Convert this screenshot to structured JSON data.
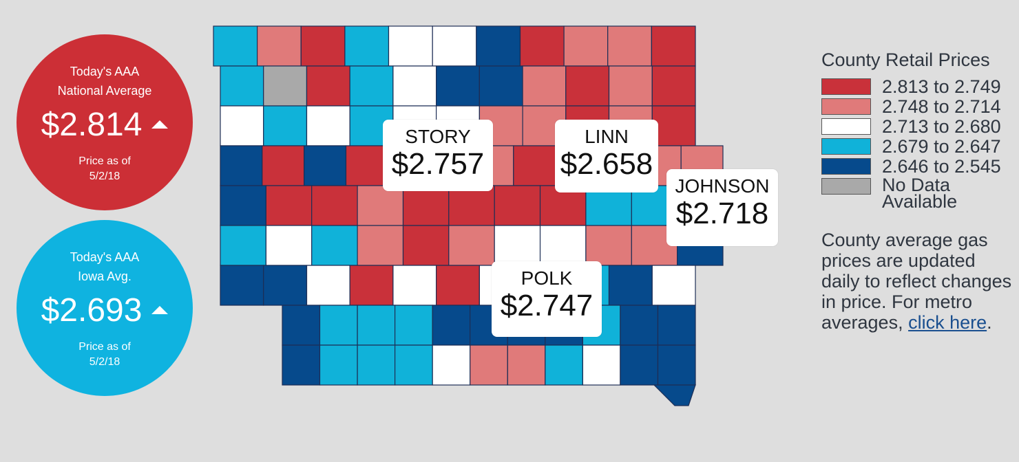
{
  "national": {
    "label_line1": "Today's AAA",
    "label_line2": "National Average",
    "price": "$2.814",
    "asof_line1": "Price as of",
    "asof_line2": "5/2/18",
    "trend": "up-arrow-icon"
  },
  "iowa": {
    "label_line1": "Today's AAA",
    "label_line2": "Iowa Avg.",
    "price": "$2.693",
    "asof_line1": "Price as of",
    "asof_line2": "5/2/18",
    "trend": "up-arrow-icon"
  },
  "callouts": {
    "story": {
      "name": "STORY",
      "price": "$2.757"
    },
    "linn": {
      "name": "LINN",
      "price": "$2.658"
    },
    "johnson": {
      "name": "JOHNSON",
      "price": "$2.718"
    },
    "polk": {
      "name": "POLK",
      "price": "$2.747"
    }
  },
  "legend": {
    "title": "County Retail Prices",
    "items": [
      {
        "range": "2.813 to 2.749",
        "color": "#c9313a"
      },
      {
        "range": "2.748 to 2.714",
        "color": "#e07a7a"
      },
      {
        "range": "2.713 to 2.680",
        "color": "#ffffff"
      },
      {
        "range": "2.679 to 2.647",
        "color": "#10b2d9"
      },
      {
        "range": "2.646 to 2.545",
        "color": "#064a8c"
      },
      {
        "range_line1": "No Data",
        "range_line2": "Available",
        "color": "#a9a9a9"
      }
    ]
  },
  "description": {
    "text": "County average gas prices are updated daily to reflect changes in price. For metro averages,",
    "link_text": "click here",
    "suffix": "."
  },
  "map_grid": [
    "cpRcwwBRppR",
    "cgRcwBBpRpR",
    "wcwcwwppRpR",
    "BRBRpwpRpRpp",
    "BRRpRRRRccw",
    "cwcpRpwwppB",
    "BBwRwRwccBw",
    "BcccBBBBcBB",
    "BcccwppcwBB"
  ]
}
